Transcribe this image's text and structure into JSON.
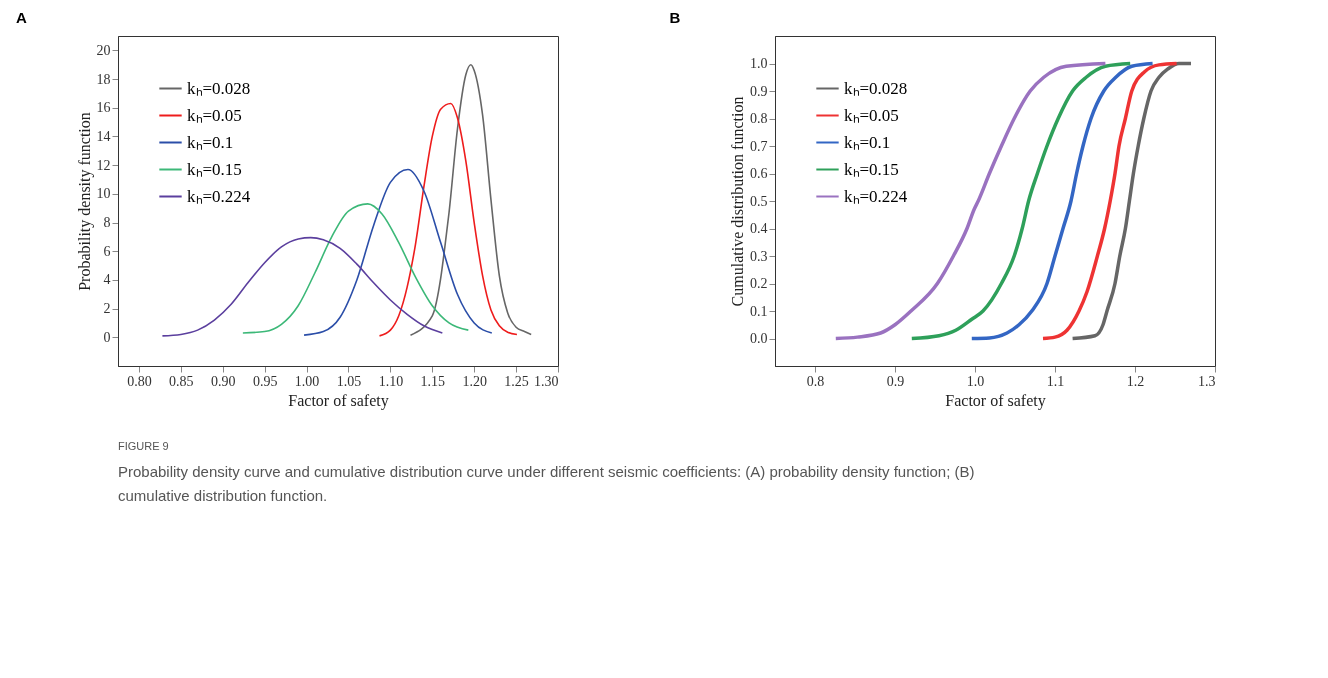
{
  "chart_data": [
    {
      "type": "line",
      "title": "A",
      "xlabel": "Factor of safety",
      "ylabel": "Probability density function",
      "legend": "top left",
      "grid": false,
      "line_style": "solid",
      "marker": "none",
      "xlim": [
        0.775,
        1.3
      ],
      "xticks": [
        {
          "value": 0.8,
          "label": "0.80"
        },
        {
          "value": 0.85,
          "label": "0.85"
        },
        {
          "value": 0.9,
          "label": "0.90"
        },
        {
          "value": 0.95,
          "label": "0.95"
        },
        {
          "value": 1.0,
          "label": "1.00"
        },
        {
          "value": 1.05,
          "label": "1.05"
        },
        {
          "value": 1.1,
          "label": "1.10"
        },
        {
          "value": 1.15,
          "label": "1.15"
        },
        {
          "value": 1.2,
          "label": "1.20"
        },
        {
          "value": 1.25,
          "label": "1.25"
        },
        {
          "value": 1.3,
          "label": "1.30"
        }
      ],
      "ylim": [
        -2,
        21
      ],
      "yticks": [
        0,
        2,
        4,
        6,
        8,
        10,
        12,
        14,
        16,
        18,
        20
      ],
      "series": [
        {
          "name": "kₕ=0.028",
          "color": "#666666",
          "x": [
            1.124,
            1.15,
            1.16,
            1.165,
            1.17,
            1.18,
            1.19,
            1.196,
            1.2,
            1.21,
            1.22,
            1.23,
            1.24,
            1.25,
            1.26,
            1.268
          ],
          "values": [
            0.15,
            1.5,
            4.1,
            6.3,
            8.7,
            14.5,
            18.3,
            19.0,
            18.6,
            15.5,
            9.6,
            4.3,
            1.7,
            0.7,
            0.4,
            0.2
          ]
        },
        {
          "name": "kₕ=0.05",
          "color": "#ee1c1c",
          "x": [
            1.087,
            1.1,
            1.11,
            1.12,
            1.13,
            1.14,
            1.15,
            1.16,
            1.172,
            1.18,
            1.19,
            1.2,
            1.21,
            1.22,
            1.23,
            1.24,
            1.251
          ],
          "values": [
            0.1,
            0.5,
            1.5,
            3.5,
            6.5,
            10.5,
            14.0,
            15.9,
            16.3,
            15.3,
            12.3,
            8.0,
            4.3,
            1.9,
            0.8,
            0.35,
            0.2
          ]
        },
        {
          "name": "kₕ=0.1",
          "color": "#2b4ea8",
          "x": [
            0.997,
            1.02,
            1.04,
            1.06,
            1.08,
            1.1,
            1.121,
            1.14,
            1.16,
            1.18,
            1.2,
            1.221
          ],
          "values": [
            0.15,
            0.4,
            1.4,
            4.0,
            7.8,
            10.8,
            11.7,
            10.2,
            6.6,
            3.0,
            1.0,
            0.3
          ]
        },
        {
          "name": "kₕ=0.15",
          "color": "#3cb878",
          "x": [
            0.924,
            0.95,
            0.97,
            0.99,
            1.01,
            1.03,
            1.05,
            1.073,
            1.09,
            1.11,
            1.13,
            1.15,
            1.17,
            1.193
          ],
          "values": [
            0.3,
            0.4,
            0.9,
            2.2,
            4.5,
            7.0,
            8.8,
            9.3,
            8.6,
            6.6,
            4.2,
            2.2,
            1.0,
            0.5
          ]
        },
        {
          "name": "kₕ=0.224",
          "color": "#5b3f9e",
          "x": [
            0.828,
            0.85,
            0.87,
            0.89,
            0.91,
            0.93,
            0.95,
            0.97,
            0.99,
            1.005,
            1.02,
            1.04,
            1.06,
            1.08,
            1.1,
            1.12,
            1.14,
            1.162
          ],
          "values": [
            0.1,
            0.2,
            0.5,
            1.2,
            2.3,
            3.8,
            5.2,
            6.3,
            6.85,
            6.95,
            6.8,
            6.2,
            5.1,
            3.8,
            2.6,
            1.6,
            0.8,
            0.3
          ]
        }
      ],
      "annotations": [
        "FIGURE 9",
        "Probability density curve and cumulative distribution curve under different seismic coefficients: (A) probability density function; (B) cumulative distribution function."
      ]
    },
    {
      "type": "line",
      "title": "B",
      "xlabel": "Factor of safety",
      "ylabel": "Cumulative distribution function",
      "legend": "top left",
      "grid": false,
      "line_style": "solid",
      "xlim": [
        0.75,
        1.3
      ],
      "xticks": [
        0.8,
        0.9,
        {
          "value": 1.0,
          "label": "1.0"
        },
        1.1,
        1.2,
        1.3
      ],
      "ylim": [
        -0.1,
        1.1
      ],
      "yticks": [
        {
          "value": 0,
          "label": "0.0"
        },
        0.1,
        0.2,
        0.3,
        0.4,
        0.5,
        0.6,
        0.7,
        0.8,
        0.9,
        {
          "value": 1.0,
          "label": "1.0"
        }
      ],
      "series": [
        {
          "name": "kₕ=0.028",
          "color": "#666666",
          "x": [
            1.122,
            1.15,
            1.16,
            1.165,
            1.175,
            1.181,
            1.188,
            1.193,
            1.198,
            1.204,
            1.211,
            1.22,
            1.23,
            1.241,
            1.255,
            1.27
          ],
          "values": [
            0,
            0.01,
            0.05,
            0.1,
            0.2,
            0.3,
            0.4,
            0.5,
            0.6,
            0.7,
            0.8,
            0.9,
            0.95,
            0.98,
            1.0,
            1.0
          ]
        },
        {
          "name": "kₕ=0.05",
          "color": "#ee3333",
          "x": [
            1.085,
            1.1,
            1.115,
            1.13,
            1.14,
            1.153,
            1.162,
            1.169,
            1.175,
            1.18,
            1.188,
            1.196,
            1.212,
            1.23,
            1.252
          ],
          "values": [
            0,
            0.005,
            0.03,
            0.1,
            0.17,
            0.3,
            0.4,
            0.5,
            0.6,
            0.7,
            0.8,
            0.9,
            0.97,
            0.995,
            1.0
          ]
        },
        {
          "name": "kₕ=0.1",
          "color": "#3366c4",
          "x": [
            0.996,
            1.018,
            1.04,
            1.055,
            1.071,
            1.09,
            1.1,
            1.11,
            1.12,
            1.127,
            1.135,
            1.145,
            1.161,
            1.176,
            1.196,
            1.222
          ],
          "values": [
            0,
            0.002,
            0.02,
            0.05,
            0.1,
            0.2,
            0.3,
            0.4,
            0.5,
            0.6,
            0.7,
            0.8,
            0.9,
            0.95,
            0.99,
            1.0
          ]
        },
        {
          "name": "kₕ=0.15",
          "color": "#2ea05a",
          "x": [
            0.921,
            0.955,
            0.976,
            0.996,
            1.01,
            1.033,
            1.049,
            1.059,
            1.067,
            1.078,
            1.09,
            1.104,
            1.122,
            1.139,
            1.163,
            1.194
          ],
          "values": [
            0,
            0.01,
            0.03,
            0.07,
            0.1,
            0.2,
            0.3,
            0.4,
            0.5,
            0.6,
            0.7,
            0.8,
            0.9,
            0.95,
            0.99,
            1.0
          ]
        },
        {
          "name": "kₕ=0.224",
          "color": "#9a72c0",
          "x": [
            0.826,
            0.853,
            0.882,
            0.9,
            0.92,
            0.953,
            0.973,
            0.99,
            0.999,
            1.004,
            1.018,
            1.033,
            1.049,
            1.069,
            1.086,
            1.114,
            1.163
          ],
          "values": [
            0,
            0.005,
            0.02,
            0.05,
            0.1,
            0.2,
            0.3,
            0.4,
            0.47,
            0.5,
            0.6,
            0.7,
            0.8,
            0.9,
            0.95,
            0.99,
            1.0
          ]
        }
      ]
    }
  ]
}
